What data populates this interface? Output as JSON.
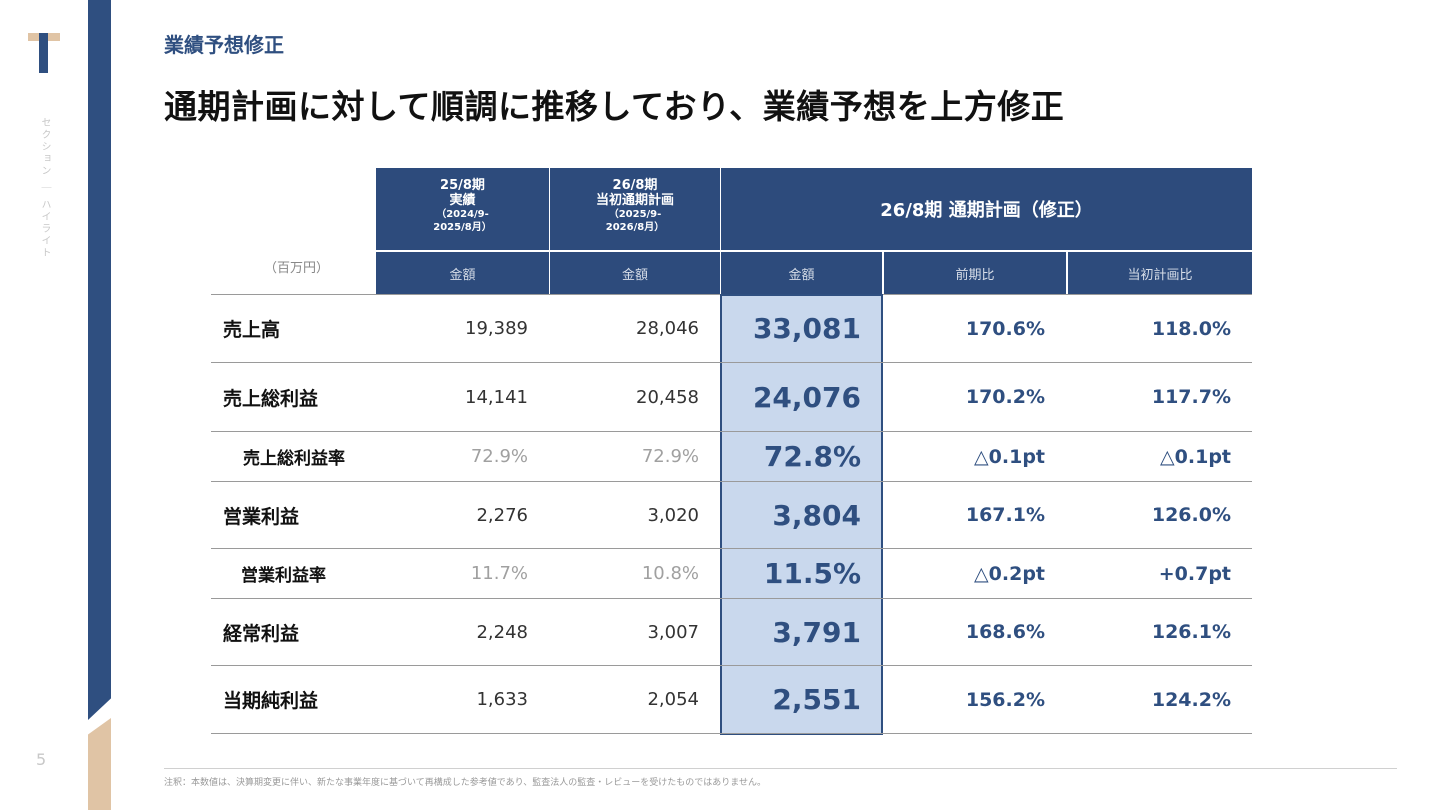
{
  "side": {
    "vertical_text": "セクション ｜ ハイライト",
    "page_number": "5"
  },
  "header": {
    "section": "業績予想修正",
    "title": "通期計画に対して順調に推移しており、業績予想を上方修正"
  },
  "table": {
    "unit": "（百万円）",
    "columns": [
      {
        "period": "25/8期",
        "name": "実績",
        "range": "（2024/9-\n2025/8月）",
        "sub": "金額"
      },
      {
        "period": "26/8期",
        "name": "当初通期計画",
        "range": "（2025/9-\n2026/8月）",
        "sub": "金額"
      }
    ],
    "revised_header": "26/8期 通期計画（修正）",
    "revised_subs": [
      "金額",
      "前期比",
      "当初計画比"
    ],
    "rows": [
      {
        "label": "売上高",
        "a": "19,389",
        "b": "28,046",
        "c": "33,081",
        "d": "170.6%",
        "e": "118.0%"
      },
      {
        "label": "売上総利益",
        "a": "14,141",
        "b": "20,458",
        "c": "24,076",
        "d": "170.2%",
        "e": "117.7%"
      },
      {
        "label": "売上総利益率",
        "a": "72.9%",
        "b": "72.9%",
        "c": "72.8%",
        "d": "△0.1pt",
        "e": "△0.1pt"
      },
      {
        "label": "営業利益",
        "a": "2,276",
        "b": "3,020",
        "c": "3,804",
        "d": "167.1%",
        "e": "126.0%"
      },
      {
        "label": "営業利益率",
        "a": "11.7%",
        "b": "10.8%",
        "c": "11.5%",
        "d": "△0.2pt",
        "e": "+0.7pt"
      },
      {
        "label": "経常利益",
        "a": "2,248",
        "b": "3,007",
        "c": "3,791",
        "d": "168.6%",
        "e": "126.1%"
      },
      {
        "label": "当期純利益",
        "a": "1,633",
        "b": "2,054",
        "c": "2,551",
        "d": "156.2%",
        "e": "124.2%"
      }
    ]
  },
  "footnote": "注釈：本数値は、決算期変更に伴い、新たな事業年度に基づいて再構成した参考値であり、監査法人の監査・レビューを受けたものではありません。",
  "colors": {
    "navy": "#2d4b7c",
    "accent": "#2f4f80",
    "tan": "#e0c4a5",
    "highlight": "#c9d8ed"
  }
}
